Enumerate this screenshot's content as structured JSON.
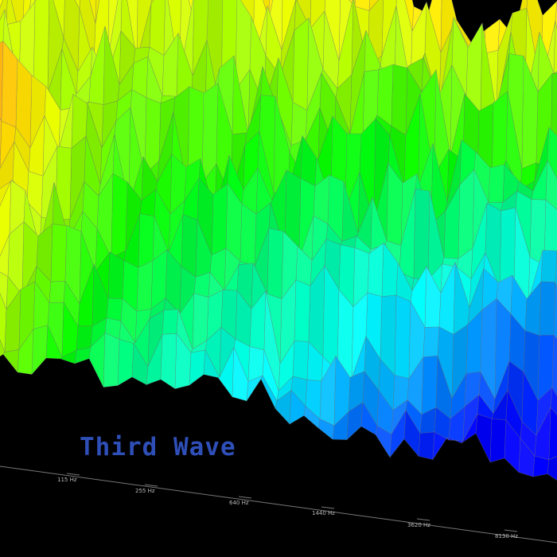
{
  "title": "Third Wave",
  "axis": {
    "labels": [
      "115 Hz",
      "255 Hz",
      "640 Hz",
      "1440 Hz",
      "3620 Hz",
      "8130 Hz"
    ]
  }
}
